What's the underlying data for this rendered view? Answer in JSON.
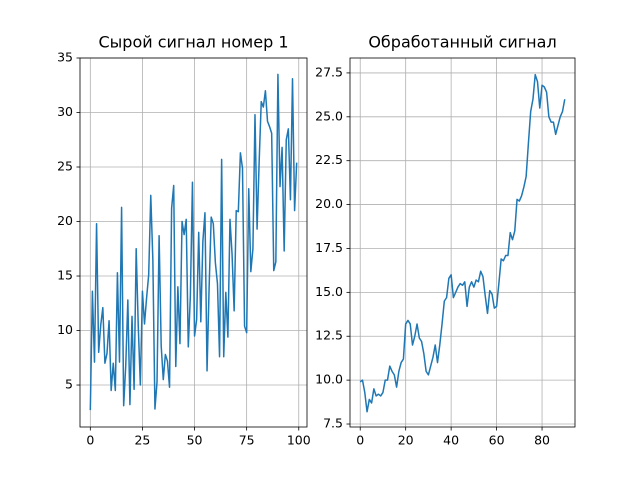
{
  "chart_data": [
    {
      "type": "line",
      "title": "Сырой сигнал номер 1",
      "color": "#1f77b4",
      "grid": true,
      "x": [
        0,
        1,
        2,
        3,
        4,
        5,
        6,
        7,
        8,
        9,
        10,
        11,
        12,
        13,
        14,
        15,
        16,
        17,
        18,
        19,
        20,
        21,
        22,
        23,
        24,
        25,
        26,
        27,
        28,
        29,
        30,
        31,
        32,
        33,
        34,
        35,
        36,
        37,
        38,
        39,
        40,
        41,
        42,
        43,
        44,
        45,
        46,
        47,
        48,
        49,
        50,
        51,
        52,
        53,
        54,
        55,
        56,
        57,
        58,
        59,
        60,
        61,
        62,
        63,
        64,
        65,
        66,
        67,
        68,
        69,
        70,
        71,
        72,
        73,
        74,
        75,
        76,
        77,
        78,
        79,
        80,
        81,
        82,
        83,
        84,
        85,
        86,
        87,
        88,
        89,
        90,
        91,
        92,
        93,
        94,
        95,
        96,
        97,
        98,
        99
      ],
      "values": [
        2.7,
        13.6,
        7.1,
        19.8,
        8.0,
        10.5,
        12.1,
        7.0,
        7.9,
        10.9,
        4.5,
        7.0,
        4.5,
        15.3,
        7.1,
        21.3,
        3.1,
        6.8,
        12.8,
        3.2,
        11.3,
        4.6,
        17.5,
        10.4,
        5.0,
        13.6,
        10.6,
        13.0,
        15.1,
        22.4,
        16.5,
        2.8,
        5.3,
        18.7,
        8.6,
        5.5,
        7.8,
        7.2,
        4.8,
        21.2,
        23.3,
        6.7,
        14.0,
        8.8,
        20.0,
        18.8,
        20.2,
        8.5,
        13.2,
        23.6,
        9.5,
        11.0,
        19.0,
        10.8,
        18.2,
        20.8,
        6.3,
        14.0,
        20.4,
        19.8,
        16.2,
        14.3,
        7.6,
        25.7,
        7.6,
        13.5,
        9.4,
        20.2,
        17.0,
        11.8,
        21.0,
        20.9,
        26.3,
        24.9,
        10.4,
        9.8,
        23.0,
        15.4,
        17.5,
        29.8,
        19.3,
        25.5,
        31.0,
        30.5,
        32.0,
        29.2,
        28.7,
        28.1,
        15.5,
        16.3,
        33.5,
        23.2,
        26.8,
        17.3,
        27.5,
        28.5,
        22.0,
        33.1,
        21.0,
        25.4
      ],
      "xlim": [
        -4.95,
        103.95
      ],
      "xticks": [
        0,
        25,
        50,
        75,
        100
      ],
      "ylim": [
        1.15,
        35.0
      ],
      "yticks": [
        5,
        10,
        15,
        20,
        25,
        30,
        35
      ]
    },
    {
      "type": "line",
      "title": "Обработанный сигнал",
      "color": "#1f77b4",
      "grid": true,
      "x": [
        0,
        1,
        2,
        3,
        4,
        5,
        6,
        7,
        8,
        9,
        10,
        11,
        12,
        13,
        14,
        15,
        16,
        17,
        18,
        19,
        20,
        21,
        22,
        23,
        24,
        25,
        26,
        27,
        28,
        29,
        30,
        31,
        32,
        33,
        34,
        35,
        36,
        37,
        38,
        39,
        40,
        41,
        42,
        43,
        44,
        45,
        46,
        47,
        48,
        49,
        50,
        51,
        52,
        53,
        54,
        55,
        56,
        57,
        58,
        59,
        60,
        61,
        62,
        63,
        64,
        65,
        66,
        67,
        68,
        69,
        70,
        71,
        72,
        73,
        74,
        75,
        76,
        77,
        78,
        79,
        80,
        81,
        82,
        83,
        84,
        85,
        86,
        87,
        88,
        89,
        90
      ],
      "values": [
        9.9,
        10.0,
        9.3,
        8.2,
        8.9,
        8.7,
        9.5,
        9.1,
        9.2,
        9.1,
        9.3,
        10.0,
        10.0,
        10.8,
        10.5,
        10.3,
        9.6,
        10.5,
        11.0,
        11.2,
        13.2,
        13.4,
        13.2,
        12.0,
        12.5,
        13.2,
        12.4,
        12.2,
        11.5,
        10.5,
        10.3,
        10.8,
        11.3,
        12.0,
        11.0,
        12.0,
        13.2,
        14.5,
        14.7,
        15.8,
        16.0,
        14.7,
        15.0,
        15.3,
        15.5,
        15.4,
        15.6,
        14.2,
        15.3,
        15.6,
        15.3,
        15.7,
        15.6,
        16.2,
        15.9,
        14.8,
        13.8,
        15.1,
        14.9,
        14.1,
        14.2,
        15.5,
        16.9,
        16.8,
        17.1,
        17.1,
        18.4,
        18.0,
        18.5,
        20.3,
        20.2,
        20.5,
        21.0,
        21.6,
        23.5,
        25.3,
        26.0,
        27.4,
        27.0,
        25.5,
        26.8,
        26.7,
        26.4,
        25.0,
        24.7,
        24.7,
        24.0,
        24.5,
        25.0,
        25.3,
        26.0
      ],
      "xlim": [
        -4.5,
        94.5
      ],
      "xticks": [
        0,
        20,
        40,
        60,
        80
      ],
      "ylim": [
        7.33,
        28.35
      ],
      "yticks": [
        7.5,
        {
          "value": 10,
          "label": "10.0"
        },
        12.5,
        {
          "value": 15,
          "label": "15.0"
        },
        17.5,
        {
          "value": 20,
          "label": "20.0"
        },
        22.5,
        {
          "value": 25,
          "label": "25.0"
        },
        27.5
      ]
    }
  ]
}
